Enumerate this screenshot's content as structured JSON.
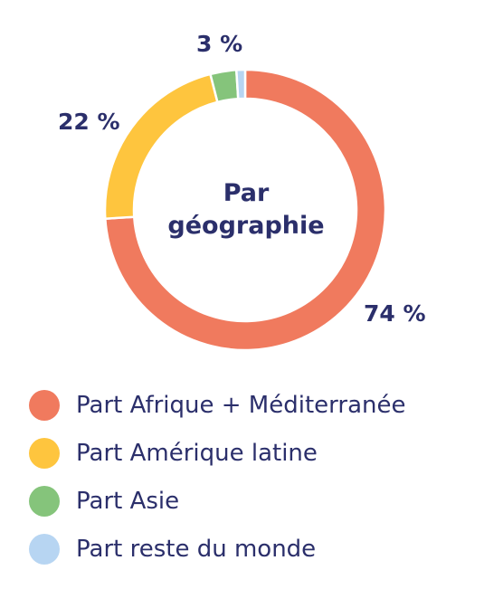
{
  "chart_data": {
    "type": "pie",
    "variant": "donut",
    "title": "Par géographie",
    "center_label_lines": [
      "Par",
      "géographie"
    ],
    "categories": [
      "Part Afrique + Méditerranée",
      "Part Amérique latine",
      "Part Asie",
      "Part reste du monde"
    ],
    "values": [
      74,
      22,
      3,
      1
    ],
    "data_labels": [
      "74 %",
      "22 %",
      "3 %",
      ""
    ],
    "colors": [
      "#f07a5e",
      "#fec53e",
      "#85c47b",
      "#b7d5f2"
    ],
    "legend_position": "bottom"
  }
}
